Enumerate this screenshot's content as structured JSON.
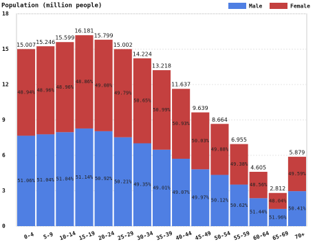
{
  "chart_data": {
    "type": "stacked_bar",
    "title": "Population (million people)",
    "categories": [
      "0-4",
      "5-9",
      "10-14",
      "15-19",
      "20-24",
      "25-29",
      "30-34",
      "35-39",
      "40-44",
      "45-49",
      "50-54",
      "55-59",
      "60-64",
      "65-69",
      "70+"
    ],
    "totals": [
      15.007,
      15.246,
      15.599,
      16.181,
      15.799,
      15.002,
      14.224,
      13.218,
      11.637,
      9.639,
      8.664,
      6.955,
      4.605,
      2.812,
      5.879
    ],
    "series": [
      {
        "name": "Male",
        "color": "#4f7fe3",
        "values": [
          7.663,
          7.782,
          7.962,
          8.275,
          8.045,
          7.532,
          7.02,
          6.478,
          5.71,
          4.817,
          4.342,
          3.521,
          2.369,
          1.461,
          2.964
        ],
        "share_labels": [
          "51.06%",
          "51.04%",
          "51.04%",
          "51.14%",
          "50.92%",
          "50.21%",
          "49.35%",
          "49.01%",
          "49.07%",
          "49.97%",
          "50.12%",
          "50.62%",
          "51.44%",
          "51.96%",
          "50.41%"
        ]
      },
      {
        "name": "Female",
        "color": "#c4403f",
        "values": [
          7.344,
          7.464,
          7.637,
          7.906,
          7.754,
          7.47,
          7.204,
          6.74,
          5.927,
          4.822,
          4.322,
          3.434,
          2.236,
          1.351,
          2.915
        ],
        "share_labels": [
          "48.94%",
          "48.96%",
          "48.96%",
          "48.86%",
          "49.08%",
          "49.79%",
          "50.65%",
          "50.99%",
          "50.93%",
          "50.03%",
          "49.88%",
          "49.38%",
          "48.56%",
          "48.04%",
          "49.59%"
        ]
      }
    ],
    "ylim": [
      0,
      18
    ],
    "yticks": [
      0,
      3,
      6,
      9,
      12,
      15,
      18
    ],
    "grid": true,
    "legend": "top-right"
  }
}
